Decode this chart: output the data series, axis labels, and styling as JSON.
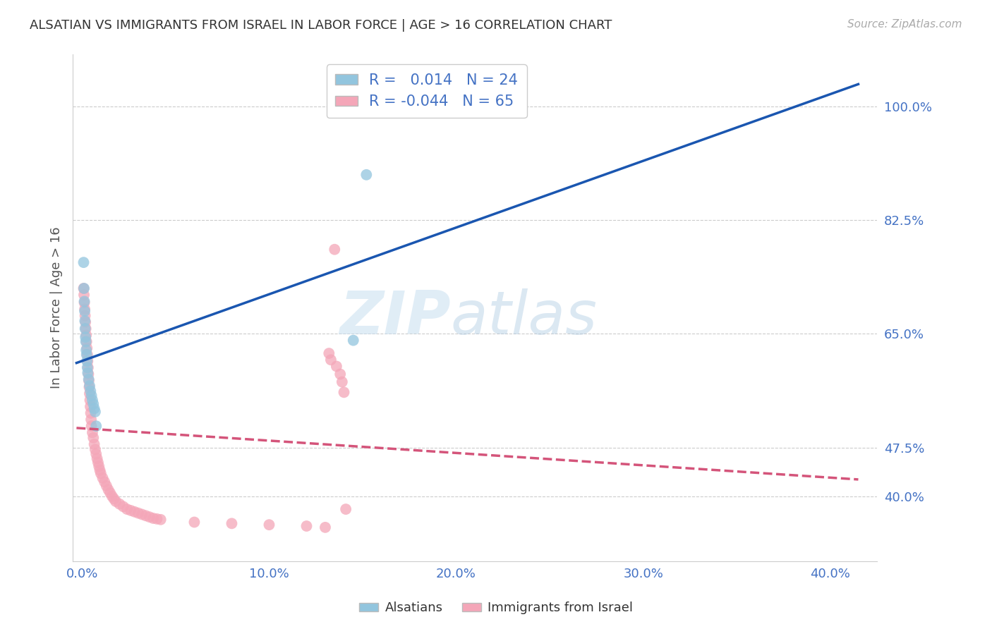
{
  "title": "ALSATIAN VS IMMIGRANTS FROM ISRAEL IN LABOR FORCE | AGE > 16 CORRELATION CHART",
  "source": "Source: ZipAtlas.com",
  "xlabel_ticks": [
    "0.0%",
    "10.0%",
    "20.0%",
    "30.0%",
    "40.0%"
  ],
  "xlabel_tick_vals": [
    0.0,
    0.1,
    0.2,
    0.3,
    0.4
  ],
  "ylabel": "In Labor Force | Age > 16",
  "ylabel_ticks": [
    "100.0%",
    "82.5%",
    "65.0%",
    "47.5%",
    "40.0%"
  ],
  "ylabel_tick_vals": [
    1.0,
    0.825,
    0.65,
    0.475,
    0.4
  ],
  "ylim": [
    0.3,
    1.08
  ],
  "xlim": [
    -0.005,
    0.425
  ],
  "watermark_top": "ZIP",
  "watermark_bottom": "atlas",
  "legend_r_blue": "0.014",
  "legend_n_blue": "24",
  "legend_r_pink": "-0.044",
  "legend_n_pink": "65",
  "blue_color": "#92c5de",
  "pink_color": "#f4a6b8",
  "trend_blue_color": "#1a56b0",
  "trend_pink_color": "#d4547a",
  "blue_data": [
    [
      0.0008,
      0.76
    ],
    [
      0.001,
      0.72
    ],
    [
      0.0012,
      0.7
    ],
    [
      0.0014,
      0.685
    ],
    [
      0.0015,
      0.67
    ],
    [
      0.0016,
      0.658
    ],
    [
      0.0018,
      0.645
    ],
    [
      0.002,
      0.638
    ],
    [
      0.0022,
      0.625
    ],
    [
      0.0024,
      0.618
    ],
    [
      0.0026,
      0.608
    ],
    [
      0.0028,
      0.598
    ],
    [
      0.003,
      0.59
    ],
    [
      0.0035,
      0.58
    ],
    [
      0.004,
      0.57
    ],
    [
      0.0045,
      0.562
    ],
    [
      0.005,
      0.555
    ],
    [
      0.0055,
      0.548
    ],
    [
      0.006,
      0.542
    ],
    [
      0.0065,
      0.535
    ],
    [
      0.007,
      0.53
    ],
    [
      0.0075,
      0.508
    ],
    [
      0.145,
      0.64
    ],
    [
      0.152,
      0.895
    ]
  ],
  "pink_data": [
    [
      0.0008,
      0.72
    ],
    [
      0.001,
      0.71
    ],
    [
      0.0012,
      0.698
    ],
    [
      0.0014,
      0.688
    ],
    [
      0.0016,
      0.678
    ],
    [
      0.0018,
      0.668
    ],
    [
      0.002,
      0.658
    ],
    [
      0.0022,
      0.648
    ],
    [
      0.0024,
      0.638
    ],
    [
      0.0026,
      0.628
    ],
    [
      0.0028,
      0.618
    ],
    [
      0.003,
      0.608
    ],
    [
      0.0032,
      0.598
    ],
    [
      0.0034,
      0.588
    ],
    [
      0.0036,
      0.578
    ],
    [
      0.0038,
      0.568
    ],
    [
      0.004,
      0.558
    ],
    [
      0.0042,
      0.548
    ],
    [
      0.0044,
      0.538
    ],
    [
      0.0046,
      0.528
    ],
    [
      0.0048,
      0.518
    ],
    [
      0.005,
      0.508
    ],
    [
      0.0055,
      0.498
    ],
    [
      0.006,
      0.49
    ],
    [
      0.0065,
      0.48
    ],
    [
      0.007,
      0.472
    ],
    [
      0.0075,
      0.465
    ],
    [
      0.008,
      0.458
    ],
    [
      0.0085,
      0.452
    ],
    [
      0.009,
      0.446
    ],
    [
      0.0095,
      0.44
    ],
    [
      0.01,
      0.435
    ],
    [
      0.011,
      0.428
    ],
    [
      0.012,
      0.422
    ],
    [
      0.013,
      0.416
    ],
    [
      0.014,
      0.41
    ],
    [
      0.015,
      0.405
    ],
    [
      0.016,
      0.4
    ],
    [
      0.017,
      0.396
    ],
    [
      0.018,
      0.392
    ],
    [
      0.02,
      0.388
    ],
    [
      0.022,
      0.384
    ],
    [
      0.024,
      0.38
    ],
    [
      0.026,
      0.378
    ],
    [
      0.028,
      0.376
    ],
    [
      0.03,
      0.374
    ],
    [
      0.032,
      0.372
    ],
    [
      0.034,
      0.37
    ],
    [
      0.036,
      0.368
    ],
    [
      0.038,
      0.366
    ],
    [
      0.04,
      0.365
    ],
    [
      0.042,
      0.364
    ],
    [
      0.06,
      0.36
    ],
    [
      0.08,
      0.358
    ],
    [
      0.1,
      0.356
    ],
    [
      0.12,
      0.354
    ],
    [
      0.13,
      0.352
    ],
    [
      0.132,
      0.62
    ],
    [
      0.133,
      0.61
    ],
    [
      0.135,
      0.78
    ],
    [
      0.136,
      0.6
    ],
    [
      0.138,
      0.588
    ],
    [
      0.139,
      0.576
    ],
    [
      0.14,
      0.56
    ],
    [
      0.141,
      0.38
    ]
  ],
  "grid_color": "#cccccc",
  "bg_color": "#ffffff",
  "title_color": "#333333",
  "axis_label_color": "#555555",
  "tick_color": "#4472c4"
}
